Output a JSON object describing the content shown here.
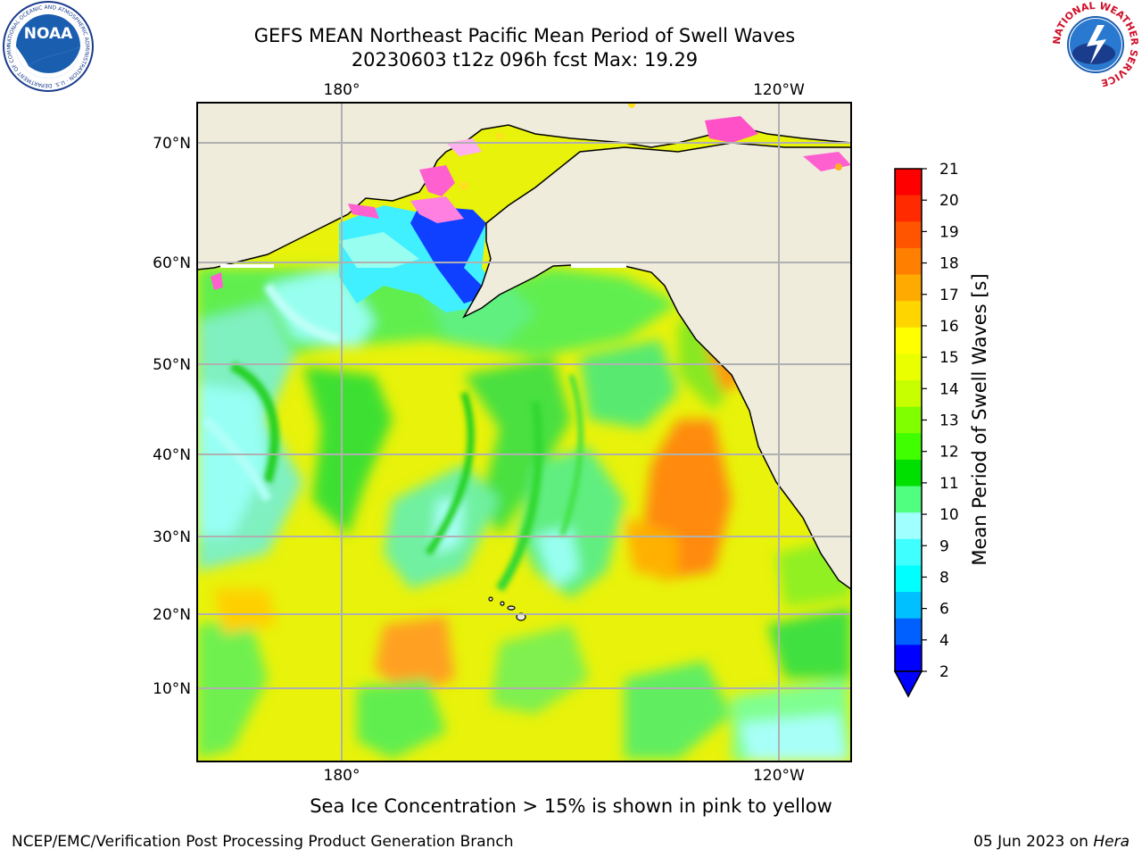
{
  "header": {
    "title_line1": "GEFS MEAN Northeast Pacific Mean Period of Swell Waves",
    "title_line2": "20230603 t12z 096h fcst   Max: 19.29",
    "noaa_logo_text": "NOAA",
    "noaa_ring_text": "NATIONAL OCEANIC AND ATMOSPHERIC ADMINISTRATION · U.S. DEPARTMENT OF COMMERCE",
    "nws_ring_text": "NATIONAL WEATHER SERVICE"
  },
  "map": {
    "lon_labels": [
      "180°",
      "120°W"
    ],
    "lat_labels": [
      "70°N",
      "60°N",
      "50°N",
      "40°N",
      "30°N",
      "20°N",
      "10°N"
    ],
    "colors": {
      "land": "#efecdc",
      "ocean_base": "#e8f20a",
      "grid": "#b0b0b0"
    }
  },
  "colorbar": {
    "label": "Mean Period of Swell Waves [s]",
    "ticks": [
      "21",
      "20",
      "19",
      "18",
      "17",
      "16",
      "15",
      "14",
      "13",
      "12",
      "11",
      "10",
      "9",
      "8",
      "6",
      "4",
      "2"
    ],
    "colors": [
      "#ff0000",
      "#ff2a00",
      "#ff5500",
      "#ff7f00",
      "#ffaa00",
      "#ffd500",
      "#ffff00",
      "#eaff00",
      "#c8ff00",
      "#80ff00",
      "#40ff00",
      "#00e000",
      "#50ff80",
      "#a0ffff",
      "#40ffff",
      "#00ffff",
      "#00c0ff",
      "#0060ff",
      "#0000ff"
    ]
  },
  "footer": {
    "note": "Sea Ice Concentration > 15% is shown in pink to yellow",
    "credit_left": "NCEP/EMC/Verification Post Processing Product Generation Branch",
    "date_text": "05 Jun 2023 on",
    "machine": "Hera"
  }
}
